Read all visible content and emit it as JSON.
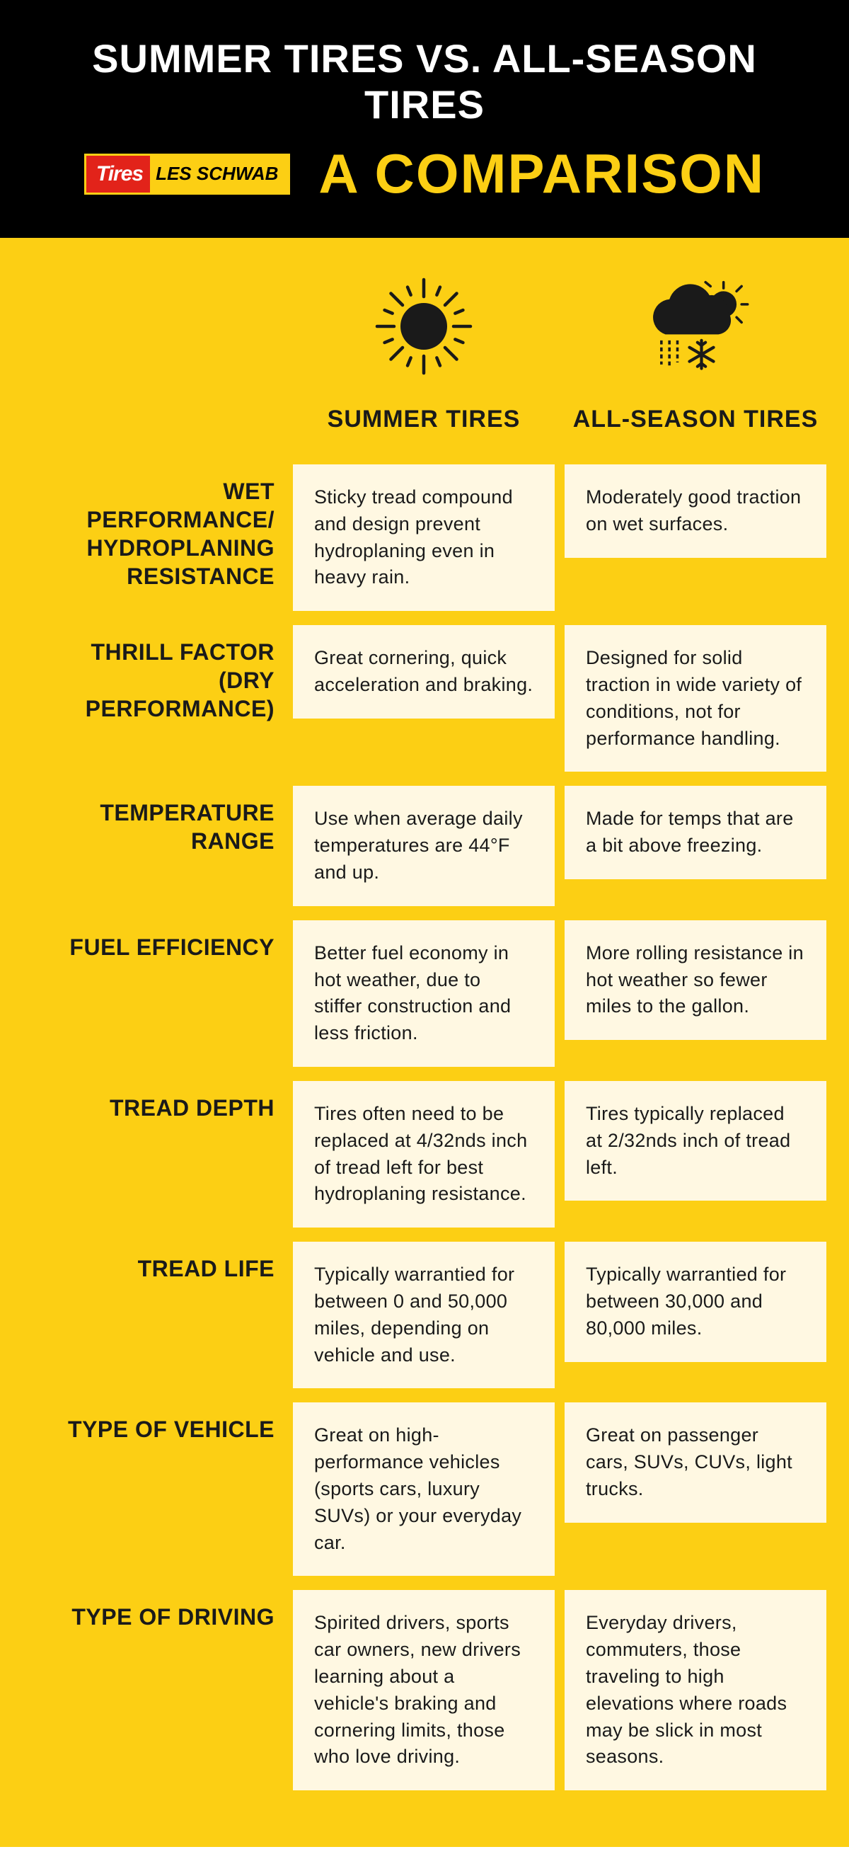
{
  "colors": {
    "bg_header": "#000000",
    "bg_body": "#fccf14",
    "cell_bg": "#fff8e2",
    "title_color": "#ffffff",
    "subtitle_color": "#fccf14",
    "text_color": "#1a1a1a",
    "logo_red": "#e2231a",
    "logo_yellow": "#fccf14"
  },
  "header": {
    "title": "SUMMER TIRES VS. ALL-SEASON TIRES",
    "subtitle": "A COMPARISON",
    "logo_left": "Tires",
    "logo_right": "LES SCHWAB"
  },
  "columns": {
    "summer_label": "SUMMER TIRES",
    "allseason_label": "ALL-SEASON TIRES",
    "summer_icon": "sun-icon",
    "allseason_icon": "cloud-sun-snow-icon"
  },
  "rows": [
    {
      "label": "WET PERFORMANCE/\nHYDROPLANING\nRESISTANCE",
      "summer": "Sticky tread compound and design prevent hydroplaning even in heavy rain.",
      "allseason": "Moderately good traction on wet surfaces."
    },
    {
      "label": "THRILL FACTOR\n(DRY PERFORMANCE)",
      "summer": "Great cornering, quick acceleration and braking.",
      "allseason": "Designed for solid traction in wide variety of conditions, not for performance handling."
    },
    {
      "label": "TEMPERATURE RANGE",
      "summer": "Use when average daily temperatures are 44°F and up.",
      "allseason": "Made for temps that are a bit above freezing."
    },
    {
      "label": "FUEL EFFICIENCY",
      "summer": "Better fuel economy in hot weather, due to stiffer construction and less friction.",
      "allseason": "More rolling resistance in hot weather so fewer miles to the gallon."
    },
    {
      "label": "TREAD DEPTH",
      "summer": "Tires often need to be replaced at 4/32nds inch of tread left for best  hydroplaning resistance.",
      "allseason": "Tires typically replaced at 2/32nds inch of tread left."
    },
    {
      "label": "TREAD LIFE",
      "summer": "Typically warrantied for between 0 and 50,000 miles, depending on vehicle and use.",
      "allseason": "Typically warrantied for between 30,000 and 80,000 miles."
    },
    {
      "label": "TYPE OF VEHICLE",
      "summer": "Great on high-performance vehicles (sports cars, luxury SUVs) or your everyday car.",
      "allseason": "Great on passenger cars, SUVs, CUVs, light trucks."
    },
    {
      "label": "TYPE OF DRIVING",
      "summer": "Spirited drivers, sports car owners, new drivers learning about a vehicle's braking and cornering limits, those who love driving.",
      "allseason": "Everyday drivers, commuters, those traveling to high elevations where roads may be slick in most seasons."
    }
  ]
}
